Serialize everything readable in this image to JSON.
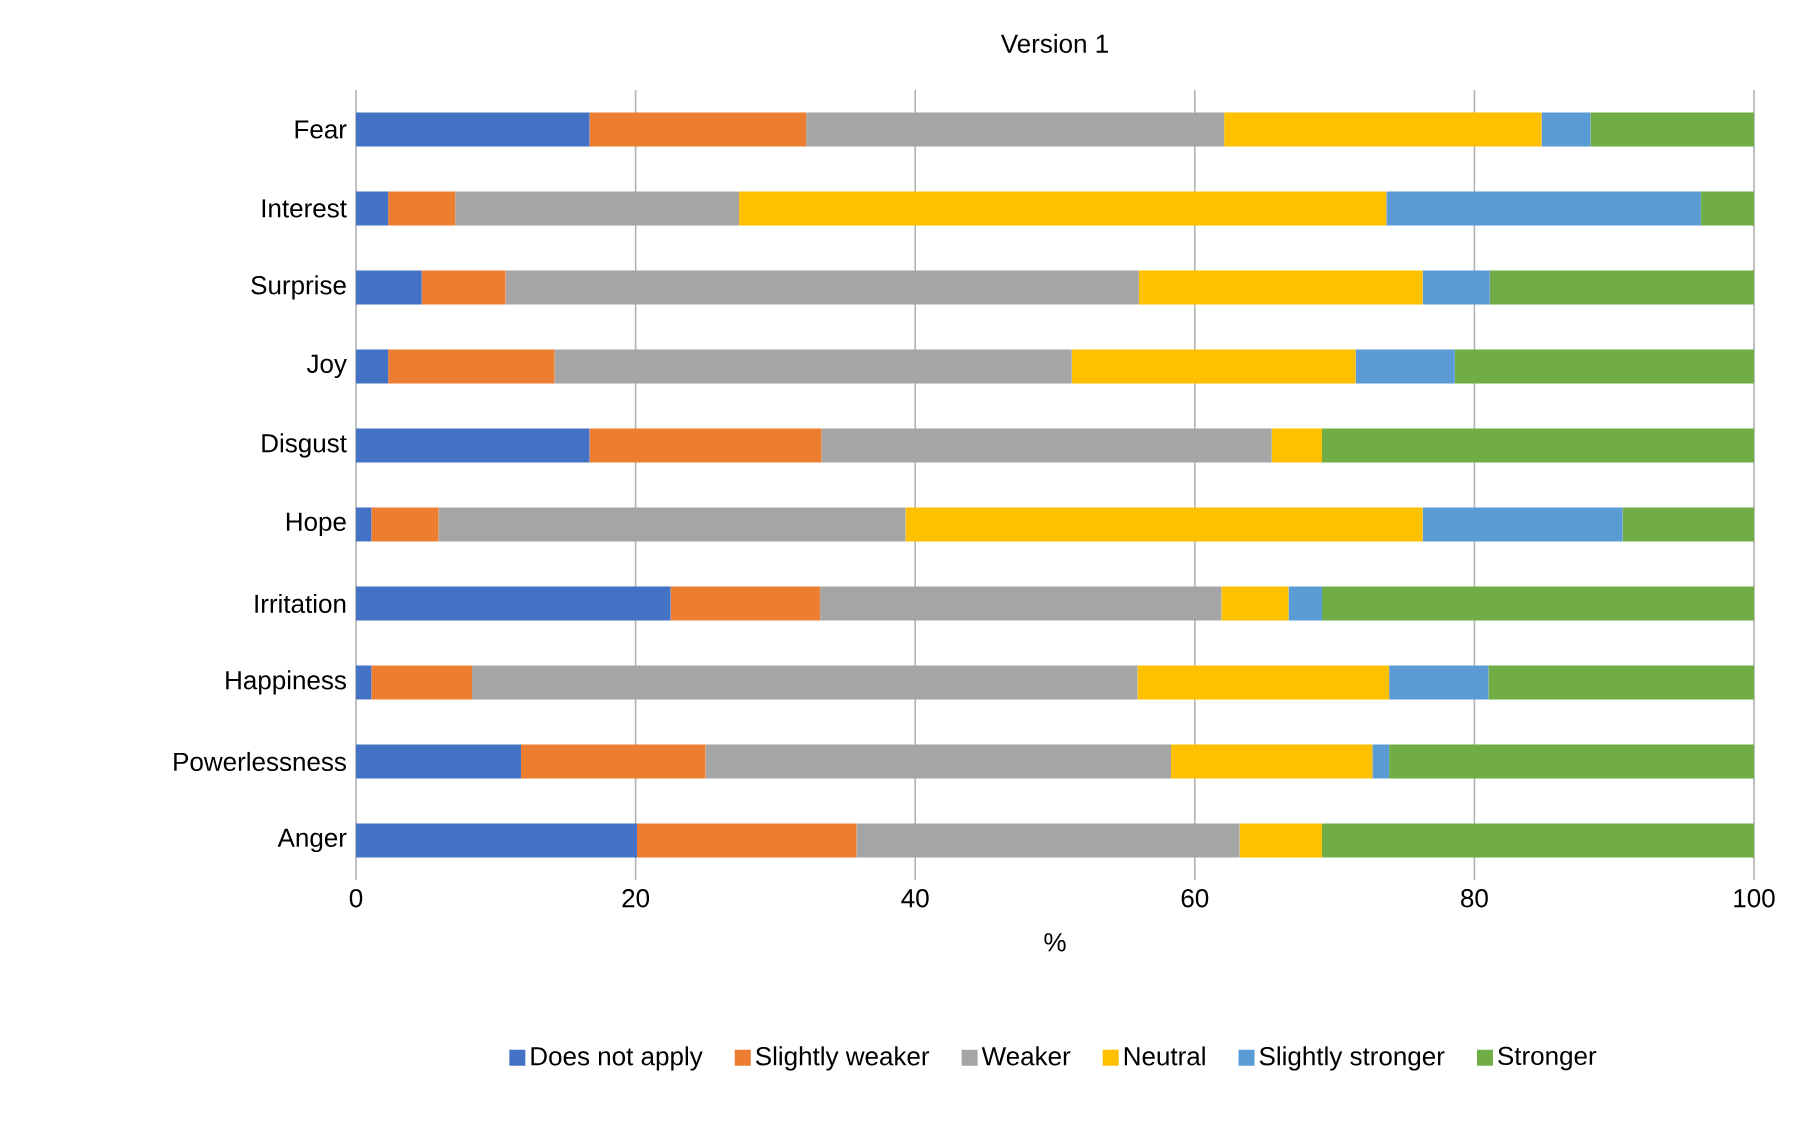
{
  "chart_data": {
    "type": "bar",
    "orientation": "horizontal",
    "stacked": true,
    "title": "Version 1",
    "xlabel": "%",
    "categories": [
      "Fear",
      "Interest",
      "Surprise",
      "Joy",
      "Disgust",
      "Hope",
      "Irritation",
      "Happiness",
      "Powerlessness",
      "Anger"
    ],
    "series": [
      {
        "name": "Does not apply",
        "color": "#4472c4",
        "values": [
          16.7,
          2.3,
          4.7,
          2.3,
          16.7,
          1.1,
          22.5,
          1.1,
          11.8,
          20.1
        ]
      },
      {
        "name": "Slightly weaker",
        "color": "#ed7d31",
        "values": [
          15.5,
          4.8,
          6.0,
          11.9,
          16.6,
          4.8,
          10.7,
          7.2,
          13.2,
          15.7
        ]
      },
      {
        "name": "Weaker",
        "color": "#a5a5a5",
        "values": [
          29.9,
          20.3,
          45.3,
          37.0,
          32.2,
          33.4,
          28.7,
          47.6,
          33.3,
          27.4
        ]
      },
      {
        "name": "Neutral",
        "color": "#ffc000",
        "values": [
          22.7,
          46.3,
          20.3,
          20.3,
          3.6,
          37.0,
          4.8,
          18.0,
          14.4,
          5.9
        ]
      },
      {
        "name": "Slightly stronger",
        "color": "#5b9bd5",
        "values": [
          3.5,
          22.5,
          4.8,
          7.1,
          0,
          14.3,
          2.4,
          7.1,
          1.2,
          0
        ]
      },
      {
        "name": "Stronger",
        "color": "#70ad47",
        "values": [
          11.7,
          3.8,
          18.9,
          21.4,
          30.9,
          9.4,
          30.9,
          19.0,
          26.1,
          30.9
        ]
      }
    ],
    "xlim": [
      0,
      100
    ],
    "xticks": [
      0,
      20,
      40,
      60,
      80,
      100
    ],
    "grid": "x",
    "legend": "bottom"
  }
}
